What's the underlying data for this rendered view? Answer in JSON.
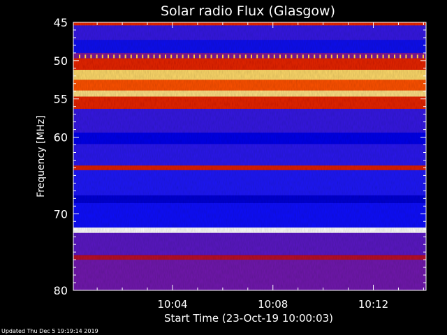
{
  "chart_data": {
    "type": "heatmap",
    "title": "Solar radio Flux (Glasgow)",
    "xlabel": "Start Time (23-Oct-19 10:00:03)",
    "ylabel": "Frequency [MHz]",
    "x_ticks": [
      "10:04",
      "10:08",
      "10:12"
    ],
    "y_ticks": [
      "45",
      "50",
      "55",
      "60",
      "70",
      "80"
    ],
    "y_tick_values_mhz": [
      45,
      50,
      55,
      60,
      70,
      80
    ],
    "ylim": [
      45,
      80
    ],
    "xlim": [
      "10:00:03",
      "10:14:06"
    ],
    "colormap": [
      "#0000cc",
      "#1a1aff",
      "#7a1fa8",
      "#c0101a",
      "#ff3300",
      "#ffcc33",
      "#ffffff"
    ],
    "bands": [
      {
        "from": 45.0,
        "to": 45.4,
        "level": 0.62
      },
      {
        "from": 45.4,
        "to": 47.3,
        "level": 0.22
      },
      {
        "from": 47.3,
        "to": 49.0,
        "level": 0.12
      },
      {
        "from": 49.0,
        "to": 49.7,
        "level": 0.35
      },
      {
        "from": 49.7,
        "to": 51.2,
        "level": 0.6
      },
      {
        "from": 51.2,
        "to": 52.5,
        "level": 0.88
      },
      {
        "from": 52.5,
        "to": 53.9,
        "level": 0.7
      },
      {
        "from": 53.9,
        "to": 54.7,
        "level": 0.9
      },
      {
        "from": 54.7,
        "to": 56.3,
        "level": 0.6
      },
      {
        "from": 56.3,
        "to": 59.4,
        "level": 0.22
      },
      {
        "from": 59.4,
        "to": 60.9,
        "level": 0.1
      },
      {
        "from": 60.9,
        "to": 63.7,
        "level": 0.2
      },
      {
        "from": 63.7,
        "to": 64.3,
        "level": 0.58
      },
      {
        "from": 64.3,
        "to": 67.6,
        "level": 0.18
      },
      {
        "from": 67.6,
        "to": 68.6,
        "level": 0.03
      },
      {
        "from": 68.6,
        "to": 71.8,
        "level": 0.16
      },
      {
        "from": 71.8,
        "to": 72.5,
        "level": 1.0
      },
      {
        "from": 72.5,
        "to": 75.4,
        "level": 0.28
      },
      {
        "from": 75.4,
        "to": 76.0,
        "level": 0.48
      },
      {
        "from": 76.0,
        "to": 80.0,
        "level": 0.32
      }
    ],
    "dotted_line_mhz": 49.5
  },
  "footer": {
    "updated": "Updated Thu Dec  5 19:19:14 2019"
  }
}
